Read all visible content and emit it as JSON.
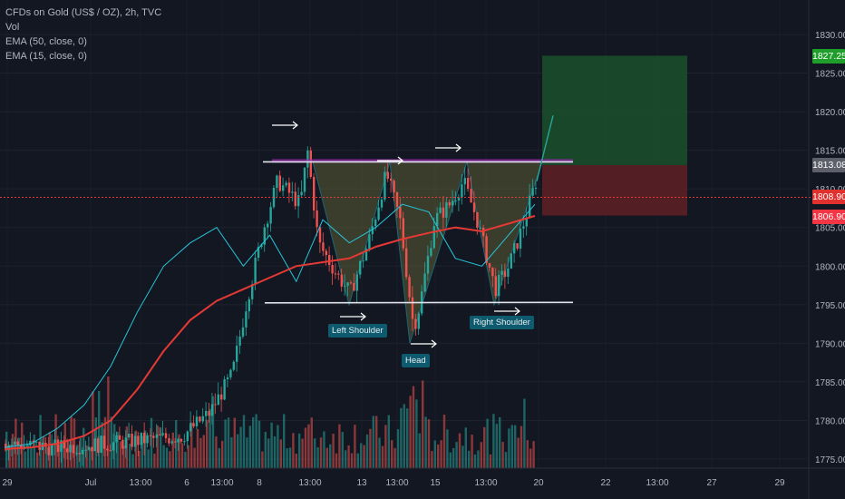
{
  "legend": {
    "line1": "CFDs on Gold (US$ / OZ), 2h, TVC",
    "line2": "Vol",
    "line3": "EMA (50, close, 0)",
    "line4": "EMA (15, close, 0)"
  },
  "price_tags": [
    {
      "value": "1827.25",
      "color": "#1f9e2b"
    },
    {
      "value": "1813.08",
      "color": "#5d606b"
    },
    {
      "value": "1808.90",
      "color": "#e0312e"
    },
    {
      "value": "1806.90",
      "color": "#f23645"
    }
  ],
  "annotations": {
    "left_shoulder": "Left Shoulder",
    "head": "Head",
    "right_shoulder": "Right Shoulder"
  },
  "colors": {
    "background": "#131722",
    "up": "#26a69a",
    "down": "#ef5350",
    "ema50": "#e53935",
    "ema15": "#26c6da",
    "neckline": "#e0e3eb",
    "pattern_fill": "#6b6a3a",
    "target_zone": "#1b4d2b",
    "stop_zone": "#5c1f26"
  },
  "chart_data": {
    "type": "candlestick",
    "instrument": "CFDs on Gold (US$ / OZ), 2h, TVC",
    "price_axis": {
      "min": 1775,
      "max": 1830,
      "ticks": [
        1775.0,
        1780.0,
        1785.0,
        1790.0,
        1795.0,
        1800.0,
        1805.0,
        1810.0,
        1815.0,
        1820.0,
        1825.0,
        1830.0
      ],
      "tick_labels": [
        "1775.00",
        "1780.00",
        "1785.00",
        "1790.00",
        "1795.00",
        "1800.00",
        "1805.00",
        "1810.00",
        "1815.00",
        "1820.00",
        "1825.00",
        "1830.00"
      ]
    },
    "time_axis_labels": [
      "29",
      "Jul",
      "13:00",
      "6",
      "13:00",
      "8",
      "13:00",
      "13",
      "13:00",
      "15",
      "13:00",
      "20",
      "22",
      "13:00",
      "27",
      "29"
    ],
    "current_price": 1808.9,
    "neckline": 1813.5,
    "pattern_low": 1795.0,
    "pattern_low_slope_end": 1795.3,
    "head_low": 1790.0,
    "left_shoulder_low": 1795.0,
    "right_shoulder_low": 1795.0,
    "target_price": 1827.25,
    "entry_price": 1813.08,
    "stop_price": 1806.9,
    "pattern": "Inverse Head and Shoulders",
    "ema50_path": [
      1776.3,
      1776.5,
      1777,
      1778,
      1780,
      1784,
      1789,
      1793,
      1795.5,
      1797,
      1798.5,
      1800,
      1800.5,
      1801,
      1802.5,
      1803.5,
      1804.3,
      1805,
      1804.5,
      1805.5,
      1806.5
    ],
    "ema15_path": [
      1776.5,
      1777,
      1779,
      1782,
      1787,
      1794,
      1800,
      1803,
      1805,
      1800,
      1804,
      1798,
      1806,
      1803,
      1805,
      1808,
      1807,
      1801,
      1800,
      1804,
      1808
    ]
  }
}
